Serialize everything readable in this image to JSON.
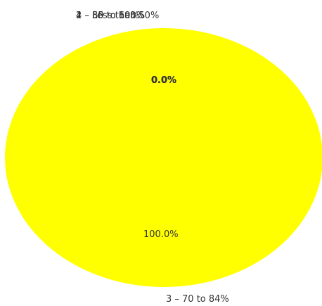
{
  "chart_data": {
    "type": "pie",
    "title": "",
    "slices": [
      {
        "label": "1 – Less than 50%",
        "value": 0,
        "percent_label": "0.0%",
        "color": "#ffff00"
      },
      {
        "label": "2 – 50 to 69%",
        "value": 0,
        "percent_label": "0.0%",
        "color": "#ffff00"
      },
      {
        "label": "3 – 70 to 84%",
        "value": 100,
        "percent_label": "100.0%",
        "color": "#ffff00"
      },
      {
        "label": "4 – 85 to 100%",
        "value": 0,
        "percent_label": "0.0%",
        "color": "#ffff00"
      }
    ]
  }
}
